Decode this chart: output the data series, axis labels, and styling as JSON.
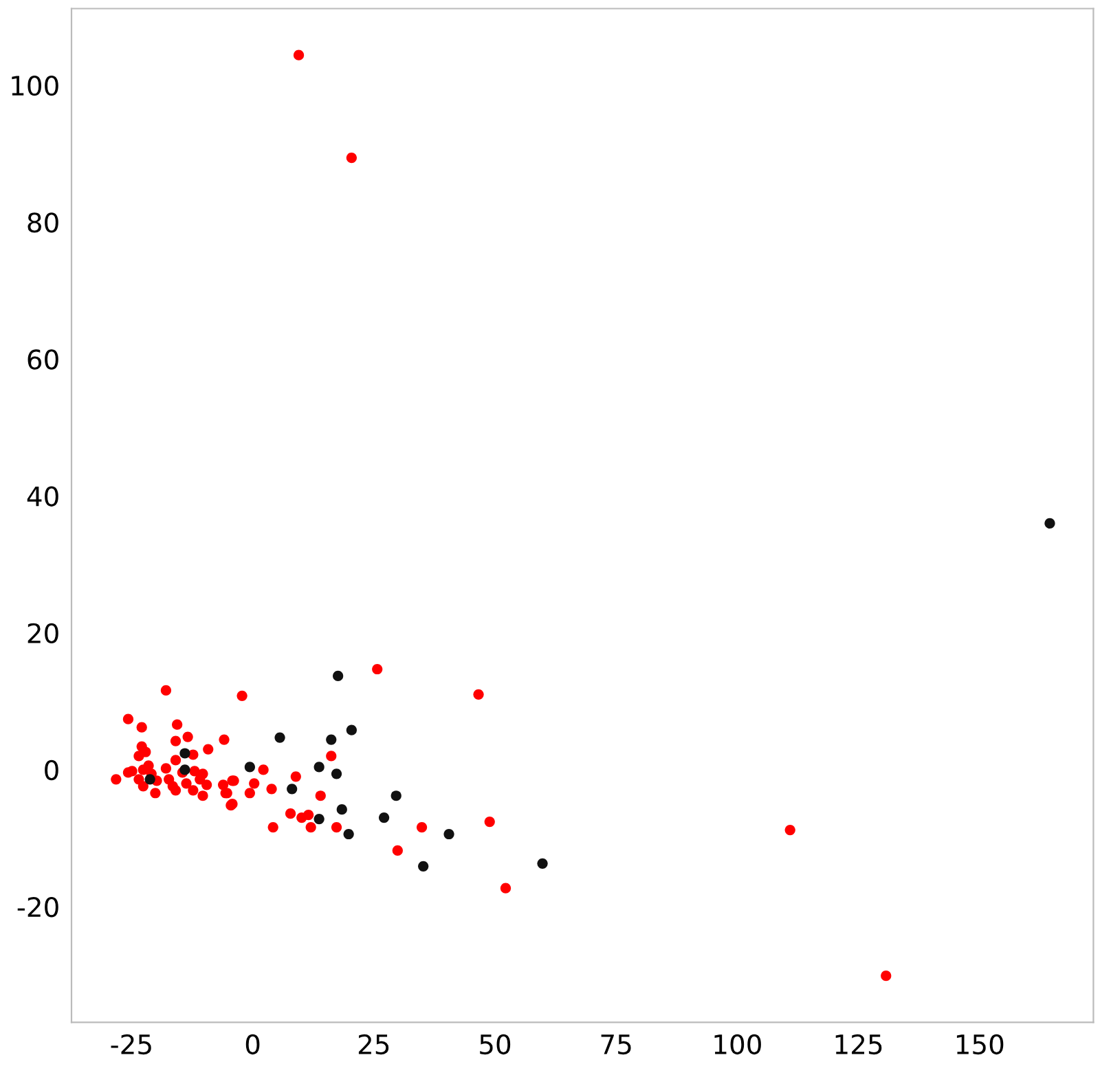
{
  "chart_data": {
    "type": "scatter",
    "xlim": [
      -37.4,
      173.5
    ],
    "ylim": [
      -36.9,
      111.2
    ],
    "xticks": [
      -25,
      0,
      25,
      50,
      75,
      100,
      125,
      150
    ],
    "yticks": [
      -20,
      0,
      20,
      40,
      60,
      80,
      100
    ],
    "grid": false,
    "marker": "circle",
    "series": [
      {
        "color": "#ff0000",
        "x": [
          9.5,
          20.4,
          110.9,
          130.7,
          25.7,
          -2.2,
          46.6,
          -5.9,
          16.2,
          2.2,
          8.9,
          14.0,
          0.3,
          -0.6,
          3.9,
          7.8,
          10.1,
          11.5,
          4.2,
          12.0,
          17.3,
          34.9,
          48.9,
          29.9,
          52.2,
          -4.2,
          -5.6,
          -4.2,
          -17.9,
          -25.7,
          -22.9,
          -15.6,
          -13.4,
          -15.9,
          -9.2,
          -12.3,
          -22.9,
          -22.1,
          -23.5,
          -15.9,
          -17.9,
          -14.5,
          -12.0,
          -28.2,
          -24.9,
          -22.6,
          -20.9,
          -23.5,
          -19.8,
          -17.3,
          -16.5,
          -13.7,
          -10.9,
          -9.5,
          -22.6,
          -20.1,
          -15.9,
          -12.3,
          -10.3,
          -6.1,
          -5.3,
          -3.9,
          -4.5,
          -10.3,
          -25.7,
          -21.5
        ],
        "values": [
          104.4,
          89.4,
          -8.8,
          -30.1,
          14.7,
          10.8,
          11.0,
          4.4,
          2.0,
          0,
          -1.0,
          -3.8,
          -2.0,
          -3.4,
          -2.8,
          -6.4,
          -7.0,
          -6.6,
          -8.4,
          -8.4,
          -8.4,
          -8.4,
          -7.6,
          -11.8,
          -17.3,
          -5.0,
          -3.4,
          -1.6,
          11.6,
          7.4,
          6.2,
          6.6,
          4.8,
          4.2,
          3.0,
          2.2,
          3.4,
          2.6,
          2.0,
          1.4,
          0.2,
          -0.4,
          -0.2,
          -1.4,
          -0.2,
          0,
          -0.6,
          -1.4,
          -1.6,
          -1.4,
          -2.4,
          -2.0,
          -1.4,
          -2.2,
          -2.4,
          -3.4,
          -3.0,
          -3.0,
          -3.8,
          -2.2,
          -3.4,
          -1.6,
          -5.2,
          -0.6,
          -0.4,
          0.6
        ]
      },
      {
        "color": "#111111",
        "x": [
          164.5,
          17.6,
          5.6,
          20.4,
          16.2,
          -0.6,
          13.7,
          17.3,
          8.1,
          29.6,
          18.4,
          13.7,
          27.1,
          19.8,
          40.5,
          35.2,
          59.8,
          -14.0,
          -14.0,
          -21.2
        ],
        "values": [
          36.0,
          13.7,
          4.7,
          5.8,
          4.4,
          0.4,
          0.4,
          -0.6,
          -2.8,
          -3.8,
          -5.8,
          -7.2,
          -7.0,
          -9.4,
          -9.4,
          -14.1,
          -13.7,
          2.4,
          0,
          -1.4
        ]
      }
    ]
  }
}
